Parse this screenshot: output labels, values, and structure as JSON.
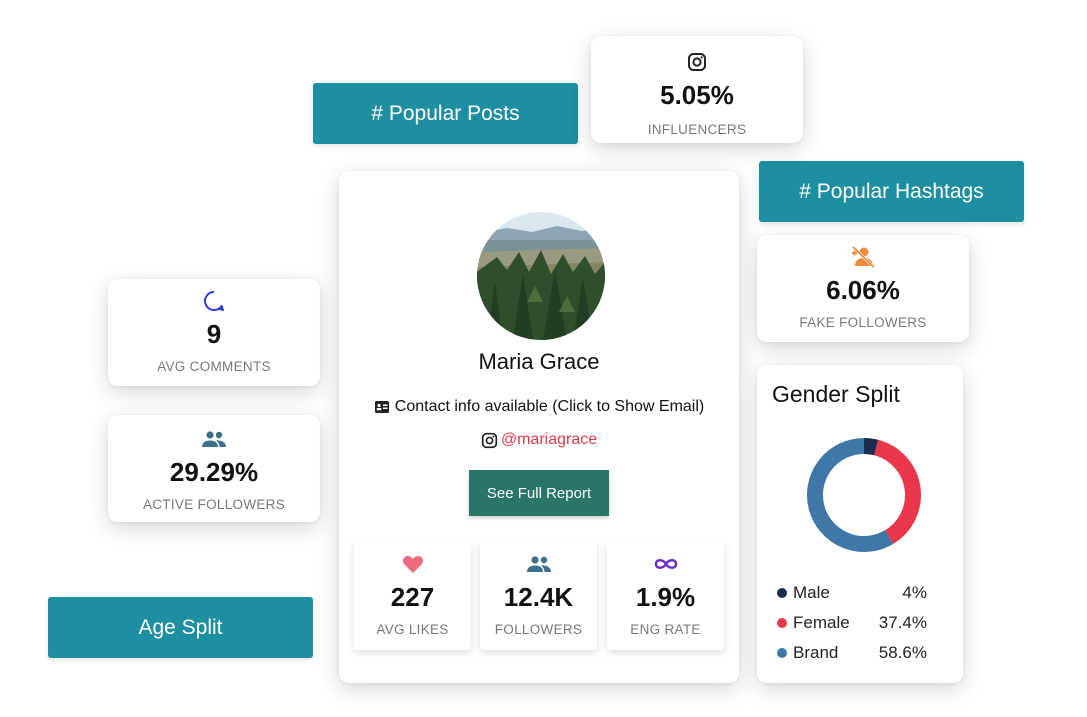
{
  "pills": {
    "popular_posts": "# Popular Posts",
    "popular_hashtags": "# Popular Hashtags",
    "age_split": "Age Split"
  },
  "stats": {
    "influencers": {
      "value": "5.05%",
      "label": "INFLUENCERS",
      "icon": "instagram-icon"
    },
    "fake_followers": {
      "value": "6.06%",
      "label": "FAKE FOLLOWERS",
      "icon": "fake-user-icon",
      "color": "#f08a3c"
    },
    "avg_comments": {
      "value": "9",
      "label": "AVG COMMENTS",
      "icon": "comment-icon",
      "color": "#2b3bd8"
    },
    "active_followers": {
      "value": "29.29%",
      "label": "ACTIVE FOLLOWERS",
      "icon": "people-icon",
      "color": "#3d6f8c"
    }
  },
  "profile": {
    "name": "Maria Grace",
    "contact": "Contact info available (Click to Show Email)",
    "handle": "@mariagrace",
    "report_button": "See Full Report",
    "metrics": [
      {
        "value": "227",
        "label": "AVG LIKES",
        "icon": "heart-icon",
        "color": "#ef6b7c"
      },
      {
        "value": "12.4K",
        "label": "FOLLOWERS",
        "icon": "people-icon",
        "color": "#3d6f8c"
      },
      {
        "value": "1.9%",
        "label": "ENG RATE",
        "icon": "infinity-icon",
        "color": "#6a2cc8"
      }
    ]
  },
  "gender": {
    "title": "Gender Split",
    "legend": [
      {
        "label": "Male",
        "pct": "4%",
        "color": "#1b2c4e"
      },
      {
        "label": "Female",
        "pct": "37.4%",
        "color": "#e8374a"
      },
      {
        "label": "Brand",
        "pct": "58.6%",
        "color": "#3f78a6"
      }
    ]
  },
  "chart_data": {
    "type": "pie",
    "title": "Gender Split",
    "categories": [
      "Male",
      "Female",
      "Brand"
    ],
    "values": [
      4,
      37.4,
      58.6
    ],
    "legend": "bottom"
  },
  "colors": {
    "accent": "#1e8fa0",
    "button": "#2a7468",
    "handle": "#e03c4c"
  }
}
